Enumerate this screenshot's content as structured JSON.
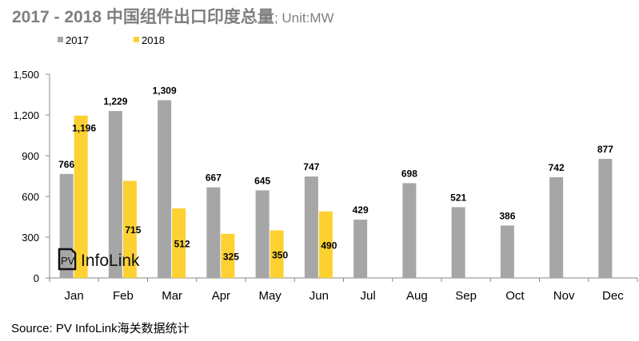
{
  "chart_data": {
    "type": "bar",
    "title": "2017 - 2018 中国组件出口印度总量",
    "unit": "; Unit:MW",
    "categories": [
      "Jan",
      "Feb",
      "Mar",
      "Apr",
      "May",
      "Jun",
      "Jul",
      "Aug",
      "Sep",
      "Oct",
      "Nov",
      "Dec"
    ],
    "series": [
      {
        "name": "2017",
        "color": "#a6a6a6",
        "values": [
          766,
          1229,
          1309,
          667,
          645,
          747,
          429,
          698,
          521,
          386,
          742,
          877
        ]
      },
      {
        "name": "2018",
        "color": "#fcd131",
        "values": [
          1196,
          715,
          512,
          325,
          350,
          490,
          null,
          null,
          null,
          null,
          null,
          null
        ]
      }
    ],
    "data_labels": {
      "2017": [
        "766",
        "1,229",
        "1,309",
        "667",
        "645",
        "747",
        "429",
        "698",
        "521",
        "386",
        "742",
        "877"
      ],
      "2018": [
        "1,196",
        "715",
        "512",
        "325",
        "350",
        "490"
      ]
    },
    "ylim": [
      0,
      1500
    ],
    "yticks": [
      "0",
      "300",
      "600",
      "900",
      "1,200",
      "1,500"
    ],
    "grid": false,
    "legend": "top-left"
  },
  "watermark": "PV InfoLink",
  "source": "Source: PV InfoLink海关数据统计"
}
